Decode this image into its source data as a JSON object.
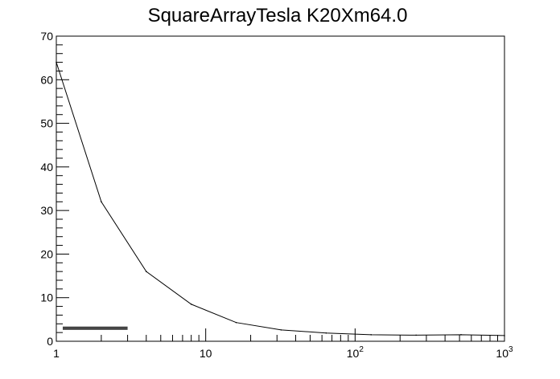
{
  "chart_data": {
    "type": "line",
    "title": "SquareArrayTesla K20Xm64.0",
    "xlabel": "",
    "ylabel": "",
    "xscale": "log",
    "xlim": [
      1,
      1000
    ],
    "ylim": [
      0,
      70
    ],
    "x_tick_labels": [
      {
        "base": "1",
        "exp": "",
        "value": 1
      },
      {
        "base": "10",
        "exp": "",
        "value": 10
      },
      {
        "base": "10",
        "exp": "2",
        "value": 100
      },
      {
        "base": "10",
        "exp": "3",
        "value": 1000
      }
    ],
    "y_ticks": [
      0,
      10,
      20,
      30,
      40,
      50,
      60,
      70
    ],
    "series": [
      {
        "x": [
          1,
          2,
          4,
          8,
          16,
          32,
          64,
          128,
          256,
          512,
          1000
        ],
        "y": [
          64,
          32,
          16,
          8.5,
          4.3,
          2.6,
          1.9,
          1.5,
          1.4,
          1.5,
          1.3
        ]
      }
    ],
    "grid": false,
    "legend": {
      "position": "bottom-left",
      "swatch_color": "#000000",
      "x_range": [
        1,
        3
      ],
      "y_values": [
        3.2,
        2.8
      ]
    },
    "line_color": "#000000"
  }
}
